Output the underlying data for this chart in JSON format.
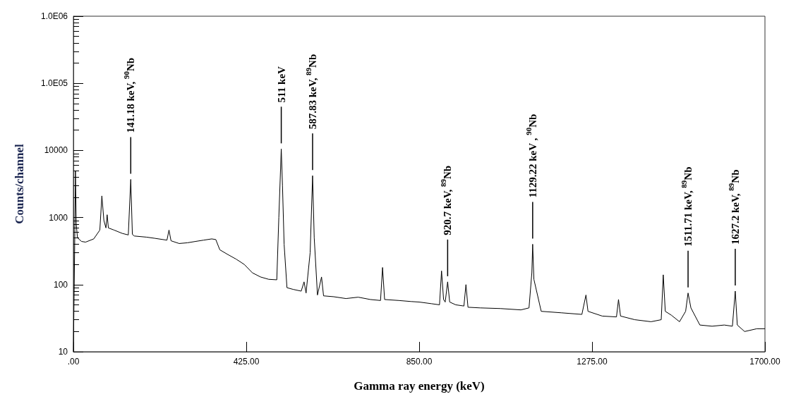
{
  "chart_data": {
    "type": "line",
    "xlabel": "Gamma ray energy (keV)",
    "ylabel": "Counts/channel",
    "log": "y",
    "grid": false,
    "xlim": [
      0,
      1700
    ],
    "xticks": [
      {
        "value": 0,
        "label": ".00"
      },
      {
        "value": 425,
        "label": "425.00"
      },
      {
        "value": 850,
        "label": "850.00"
      },
      {
        "value": 1275,
        "label": "1275.00"
      },
      {
        "value": 1700,
        "label": "1700.00"
      }
    ],
    "ylim": [
      10,
      1000000
    ],
    "yticks": [
      10,
      100,
      1000,
      10000,
      {
        "value": 100000,
        "label": "1.0E05"
      },
      {
        "value": 1000000,
        "label": "1.0E06"
      }
    ],
    "series": [
      {
        "color": "#000000",
        "x": [
          0,
          3,
          5,
          7,
          10,
          20,
          30,
          50,
          65,
          70,
          75,
          80,
          83,
          86,
          100,
          120,
          135,
          141,
          145,
          150,
          180,
          200,
          230,
          235,
          240,
          260,
          280,
          300,
          320,
          340,
          350,
          360,
          380,
          400,
          420,
          440,
          460,
          480,
          500,
          505,
          511,
          514,
          518,
          525,
          540,
          560,
          567,
          572,
          582,
          588,
          592,
          600,
          610,
          615,
          640,
          670,
          700,
          730,
          755,
          760,
          765,
          800,
          830,
          850,
          880,
          900,
          905,
          910,
          914,
          920,
          925,
          940,
          960,
          965,
          970,
          1000,
          1050,
          1100,
          1120,
          1127,
          1129,
          1132,
          1150,
          1200,
          1250,
          1260,
          1265,
          1300,
          1335,
          1340,
          1345,
          1380,
          1420,
          1445,
          1450,
          1455,
          1470,
          1490,
          1505,
          1511,
          1518,
          1540,
          1570,
          1600,
          1620,
          1627,
          1632,
          1650,
          1680,
          1700
        ],
        "values": [
          10,
          300,
          5000,
          800,
          500,
          440,
          430,
          480,
          650,
          2100,
          900,
          700,
          1100,
          700,
          650,
          580,
          550,
          3700,
          560,
          530,
          510,
          490,
          460,
          650,
          450,
          410,
          420,
          440,
          460,
          480,
          470,
          330,
          280,
          240,
          200,
          150,
          130,
          120,
          118,
          1000,
          10500,
          3000,
          400,
          90,
          85,
          80,
          110,
          75,
          300,
          4200,
          500,
          70,
          130,
          68,
          66,
          62,
          65,
          60,
          58,
          180,
          60,
          58,
          56,
          55,
          52,
          50,
          160,
          60,
          55,
          110,
          55,
          50,
          48,
          100,
          46,
          45,
          44,
          42,
          45,
          150,
          400,
          120,
          40,
          38,
          36,
          70,
          40,
          34,
          33,
          60,
          34,
          30,
          28,
          30,
          140,
          40,
          35,
          28,
          40,
          75,
          45,
          25,
          24,
          25,
          24,
          80,
          25,
          20,
          22,
          22
        ]
      }
    ],
    "annotations": [
      {
        "text": "141.18 keV, $^{90}$Nb",
        "x": 141,
        "y": 3700
      },
      {
        "text": "511 keV",
        "x": 511,
        "y": 10500
      },
      {
        "text": "587.83 keV, $^{89}$Nb",
        "x": 588,
        "y": 4200
      },
      {
        "text": "920.7 keV, $^{89}$Nb",
        "x": 920,
        "y": 110
      },
      {
        "text": "1129.22 keV , $^{90}$Nb",
        "x": 1129,
        "y": 400
      },
      {
        "text": "1511.71 keV, $^{89}$Nb",
        "x": 1511,
        "y": 75
      },
      {
        "text": "1627.2 keV, $^{89}$Nb",
        "x": 1627,
        "y": 80
      }
    ]
  }
}
